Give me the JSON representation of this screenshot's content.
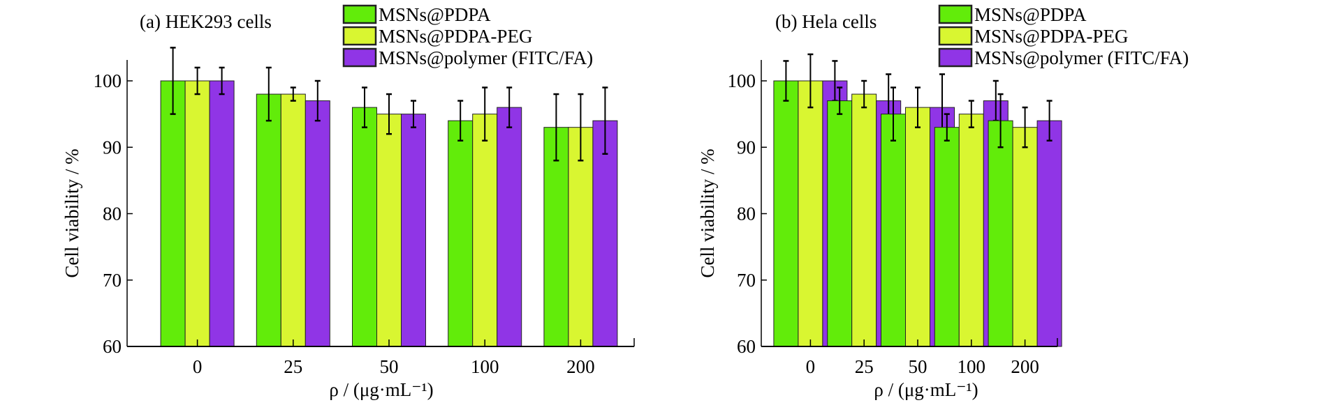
{
  "chart_data": [
    {
      "type": "bar",
      "title": "(a) HEK293 cells",
      "xlabel": "ρ / (μg·mL⁻¹)",
      "ylabel": "Cell viability / %",
      "categories": [
        "0",
        "25",
        "50",
        "100",
        "200"
      ],
      "ylim": [
        60,
        105
      ],
      "yticks": [
        60,
        70,
        80,
        90,
        100
      ],
      "grid": false,
      "legend_position": "top-right",
      "series": [
        {
          "name": "MSNs@PDPA",
          "color": "#62EC0A",
          "values": [
            100,
            98,
            96,
            94,
            93
          ],
          "errors": [
            5,
            4,
            3,
            3,
            5
          ]
        },
        {
          "name": "MSNs@PDPA-PEG",
          "color": "#D9F631",
          "values": [
            100,
            98,
            95,
            95,
            93
          ],
          "errors": [
            2,
            1,
            3,
            4,
            5
          ]
        },
        {
          "name": "MSNs@polymer (FITC/FA)",
          "color": "#9035E6",
          "values": [
            100,
            97,
            95,
            96,
            94
          ],
          "errors": [
            2,
            3,
            2,
            3,
            5
          ]
        }
      ]
    },
    {
      "type": "bar",
      "title": "(b) Hela cells",
      "xlabel": "ρ / (μg·mL⁻¹)",
      "ylabel": "Cell viability / %",
      "categories": [
        "0",
        "25",
        "50",
        "100",
        "200"
      ],
      "ylim": [
        60,
        105
      ],
      "yticks": [
        60,
        70,
        80,
        90,
        100
      ],
      "grid": false,
      "legend_position": "top-right",
      "series": [
        {
          "name": "MSNs@PDPA",
          "color": "#62EC0A",
          "values": [
            100,
            97,
            95,
            93,
            94
          ],
          "errors": [
            3,
            2,
            4,
            2,
            4
          ]
        },
        {
          "name": "MSNs@PDPA-PEG",
          "color": "#D9F631",
          "values": [
            100,
            98,
            96,
            95,
            93
          ],
          "errors": [
            4,
            2,
            3,
            2,
            3
          ]
        },
        {
          "name": "MSNs@polymer (FITC/FA)",
          "color": "#9035E6",
          "values": [
            100,
            97,
            96,
            97,
            94
          ],
          "errors": [
            3,
            4,
            5,
            3,
            3
          ]
        }
      ]
    }
  ]
}
